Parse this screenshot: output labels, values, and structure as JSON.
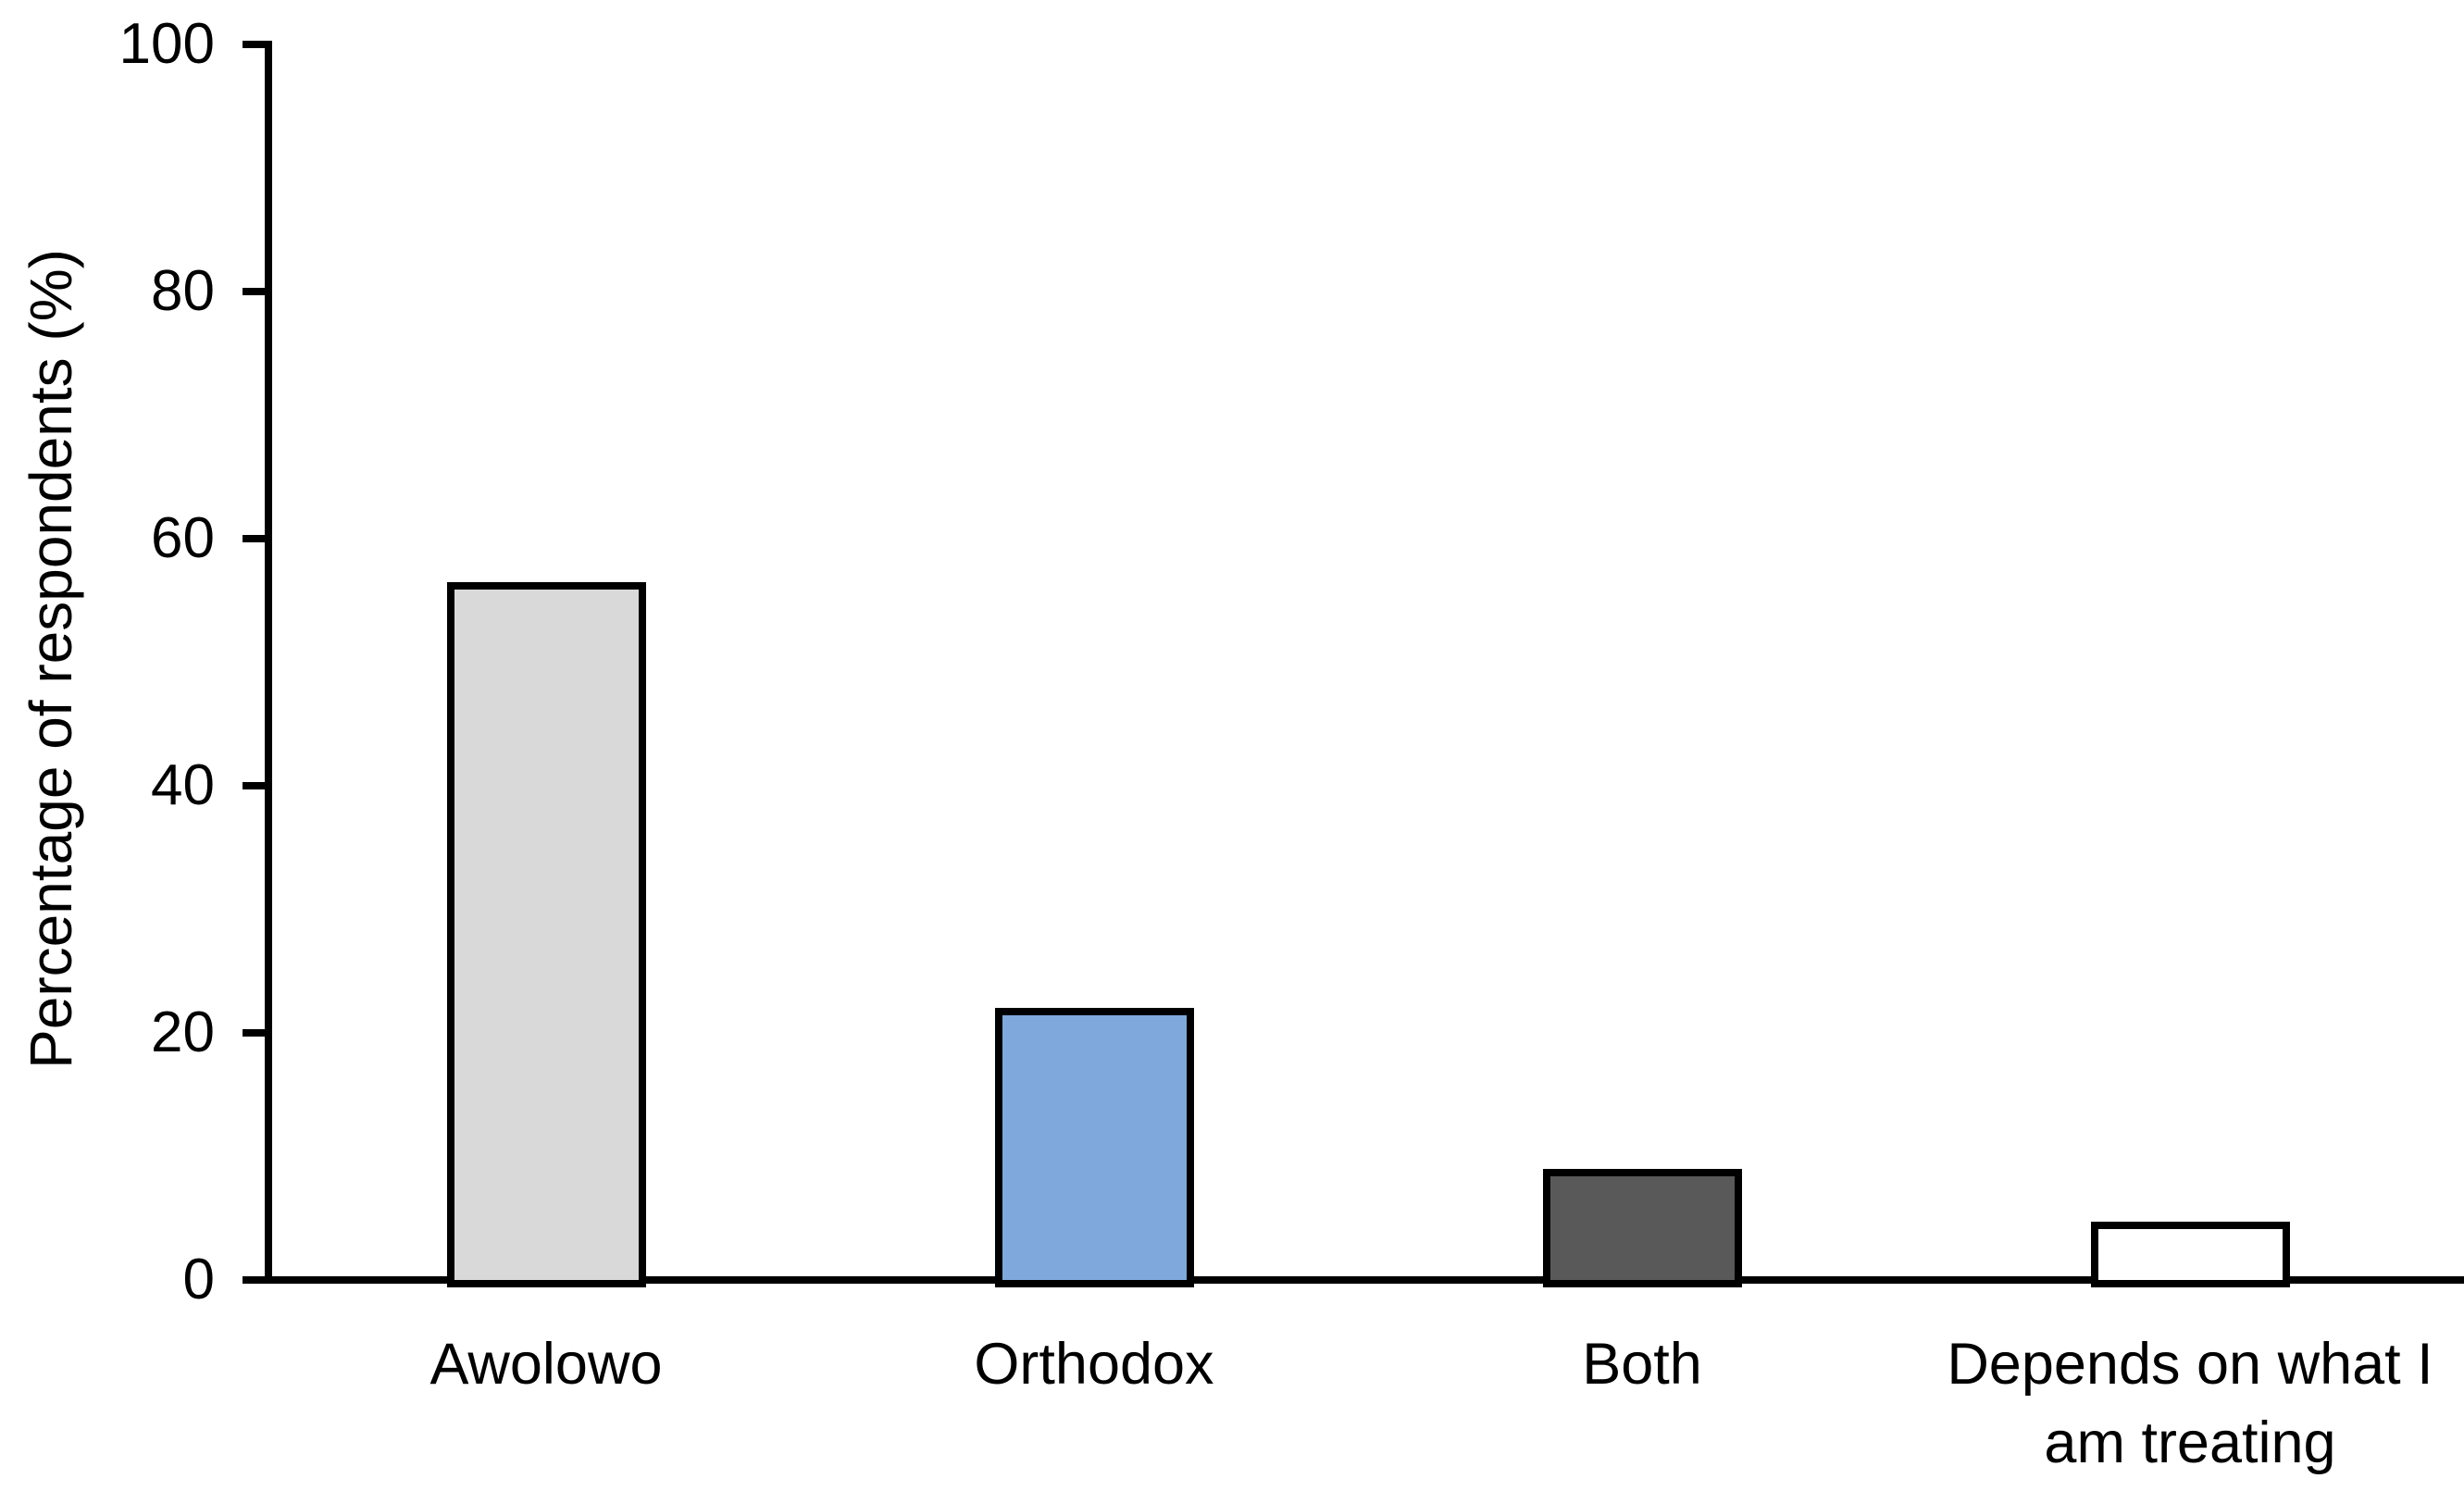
{
  "figure": {
    "background": "#FFFFFF"
  },
  "chart_data": {
    "type": "bar",
    "title": "",
    "categories": [
      "Awolowo",
      "Orthodox",
      "Both",
      "Depends on what I am treating"
    ],
    "values": [
      56.5,
      22,
      9,
      4.7
    ],
    "xlabel": "",
    "ylabel": "Percentage of respondents (%)",
    "ylim": [
      0,
      100
    ],
    "yticks": [
      0,
      20,
      40,
      60,
      80,
      100
    ],
    "grid": false,
    "legend": "none",
    "bar_fill_colors": [
      "#D9D9D9",
      "#7FA9DC",
      "#595959",
      "#FFFFFF"
    ],
    "bar_border_color": "#000000",
    "axis_color": "#000000"
  }
}
